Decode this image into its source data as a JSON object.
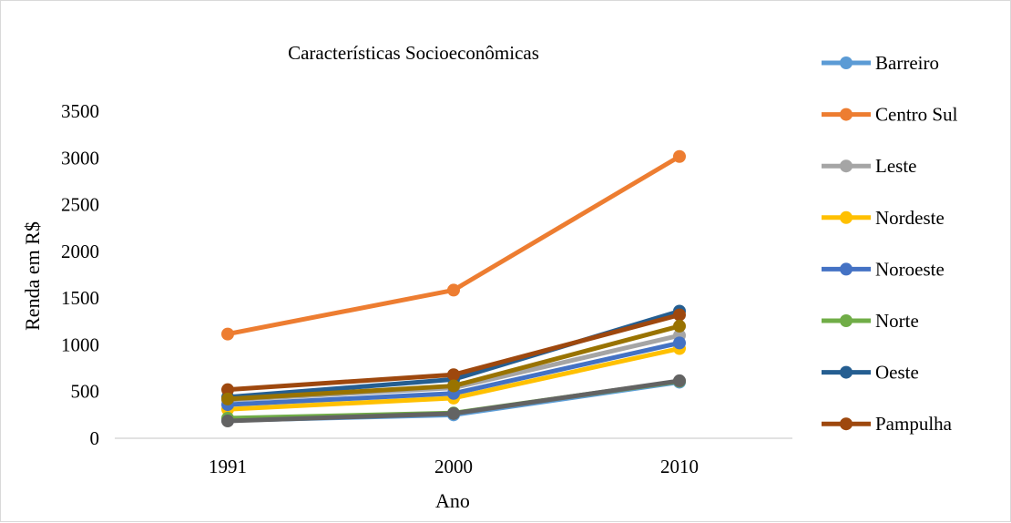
{
  "chart_data": {
    "type": "line",
    "title": "Características Socioeconômicas",
    "xlabel": "Ano",
    "ylabel": "Renda em R$",
    "categories": [
      "1991",
      "2000",
      "2010"
    ],
    "ylim": [
      0,
      3500
    ],
    "yticks": [
      0,
      500,
      1000,
      1500,
      2000,
      2500,
      3000,
      3500
    ],
    "grid": false,
    "legend_position": "right",
    "series": [
      {
        "name": "Barreiro",
        "color": "#5B9BD5",
        "values": [
          190,
          250,
          600
        ]
      },
      {
        "name": "Centro Sul",
        "color": "#ED7D31",
        "values": [
          1115,
          1585,
          3015
        ]
      },
      {
        "name": "Leste",
        "color": "#A5A5A5",
        "values": [
          410,
          540,
          1100
        ]
      },
      {
        "name": "Nordeste",
        "color": "#FFC000",
        "values": [
          310,
          430,
          960
        ]
      },
      {
        "name": "Noroeste",
        "color": "#4472C4",
        "values": [
          360,
          480,
          1020
        ]
      },
      {
        "name": "Norte",
        "color": "#70AD47",
        "values": [
          215,
          270,
          610
        ]
      },
      {
        "name": "Oeste",
        "color": "#255E91",
        "values": [
          440,
          630,
          1360
        ]
      },
      {
        "name": "Pampulha",
        "color": "#9E480E",
        "values": [
          520,
          680,
          1320
        ]
      },
      {
        "name": "",
        "color": "#997300",
        "values": [
          420,
          560,
          1200
        ]
      },
      {
        "name": "",
        "color": "#636363",
        "values": [
          185,
          265,
          615
        ]
      }
    ]
  }
}
